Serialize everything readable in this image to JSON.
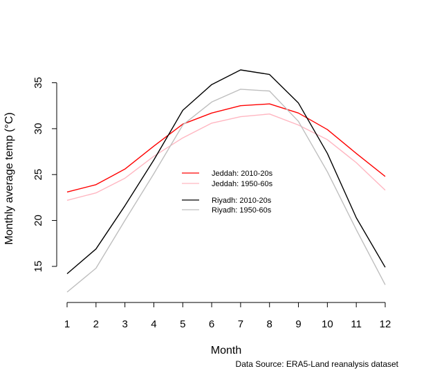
{
  "chart_data": {
    "type": "line",
    "title": "",
    "xlabel": "Month",
    "ylabel": "Monthly average temp (°C)",
    "x": [
      1,
      2,
      3,
      4,
      5,
      6,
      7,
      8,
      9,
      10,
      11,
      12
    ],
    "x_ticks": [
      "1",
      "2",
      "3",
      "4",
      "5",
      "6",
      "7",
      "8",
      "9",
      "10",
      "11",
      "12"
    ],
    "y_ticks": [
      "15",
      "20",
      "25",
      "30",
      "35"
    ],
    "xlim": [
      1,
      12
    ],
    "ylim": [
      12.2,
      36.4
    ],
    "grid": false,
    "legend_position": "center",
    "series": [
      {
        "name": "Jeddah: 2010-20s",
        "color": "#ff0000",
        "values": [
          23.1,
          23.9,
          25.6,
          28.1,
          30.5,
          31.7,
          32.5,
          32.7,
          31.7,
          29.9,
          27.3,
          24.8
        ]
      },
      {
        "name": "Jeddah: 1950-60s",
        "color": "#ffb6c1",
        "values": [
          22.2,
          23.0,
          24.6,
          27.0,
          29.0,
          30.6,
          31.3,
          31.6,
          30.4,
          28.8,
          26.3,
          23.3
        ]
      },
      {
        "name": "Riyadh: 2010-20s",
        "color": "#000000",
        "values": [
          14.2,
          16.9,
          21.6,
          26.6,
          32.0,
          34.8,
          36.4,
          35.9,
          32.8,
          27.3,
          20.3,
          14.9
        ]
      },
      {
        "name": "Riyadh: 1950-60s",
        "color": "#bebebe",
        "values": [
          12.2,
          14.8,
          20.0,
          25.1,
          30.4,
          32.9,
          34.3,
          34.1,
          30.8,
          25.3,
          19.0,
          13.0
        ]
      }
    ],
    "source": "Data Source: ERA5-Land reanalysis dataset"
  }
}
